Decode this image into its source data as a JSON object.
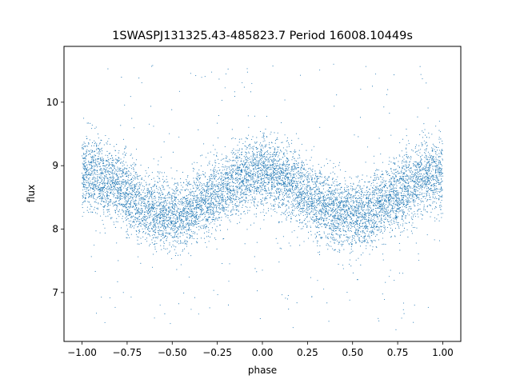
{
  "chart_data": {
    "type": "scatter",
    "title": "1SWASPJ131325.43-485823.7 Period 16008.10449s",
    "xlabel": "phase",
    "ylabel": "flux",
    "xlim": [
      -1.1,
      1.1
    ],
    "ylim": [
      6.23,
      10.88
    ],
    "x_ticks": [
      -1.0,
      -0.75,
      -0.5,
      -0.25,
      0.0,
      0.25,
      0.5,
      0.75,
      1.0
    ],
    "x_tick_labels": [
      "−1.00",
      "−0.75",
      "−0.50",
      "−0.25",
      "0.00",
      "0.25",
      "0.50",
      "0.75",
      "1.00"
    ],
    "y_ticks": [
      7,
      8,
      9,
      10
    ],
    "y_tick_labels": [
      "7",
      "8",
      "9",
      "10"
    ],
    "grid": false,
    "legend": "none",
    "point_color": "#1f77b4",
    "series": [
      {
        "x_range": [
          -1.0,
          1.0
        ],
        "mean_model": {
          "offset": 8.55,
          "amplitude": 0.33,
          "period_in_phase": 1.0,
          "peak_phase": 0.0
        },
        "scatter_sd": 0.28,
        "outlier_range": [
          6.4,
          10.6
        ],
        "points": [
          [
            -1.0,
            8.88
          ],
          [
            -0.95,
            8.85
          ],
          [
            -0.9,
            8.8
          ],
          [
            -0.85,
            8.72
          ],
          [
            -0.8,
            8.65
          ],
          [
            -0.75,
            8.55
          ],
          [
            -0.7,
            8.45
          ],
          [
            -0.65,
            8.35
          ],
          [
            -0.6,
            8.28
          ],
          [
            -0.55,
            8.23
          ],
          [
            -0.5,
            8.22
          ],
          [
            -0.45,
            8.23
          ],
          [
            -0.4,
            8.28
          ],
          [
            -0.35,
            8.35
          ],
          [
            -0.3,
            8.45
          ],
          [
            -0.25,
            8.55
          ],
          [
            -0.2,
            8.65
          ],
          [
            -0.15,
            8.72
          ],
          [
            -0.1,
            8.8
          ],
          [
            -0.05,
            8.85
          ],
          [
            0.0,
            8.88
          ],
          [
            0.05,
            8.85
          ],
          [
            0.1,
            8.8
          ],
          [
            0.15,
            8.72
          ],
          [
            0.2,
            8.65
          ],
          [
            0.25,
            8.55
          ],
          [
            0.3,
            8.45
          ],
          [
            0.35,
            8.35
          ],
          [
            0.4,
            8.28
          ],
          [
            0.45,
            8.23
          ],
          [
            0.5,
            8.22
          ],
          [
            0.55,
            8.23
          ],
          [
            0.6,
            8.28
          ],
          [
            0.65,
            8.35
          ],
          [
            0.7,
            8.45
          ],
          [
            0.75,
            8.55
          ],
          [
            0.8,
            8.65
          ],
          [
            0.85,
            8.72
          ],
          [
            0.9,
            8.8
          ],
          [
            0.95,
            8.85
          ],
          [
            1.0,
            8.88
          ]
        ]
      }
    ]
  }
}
